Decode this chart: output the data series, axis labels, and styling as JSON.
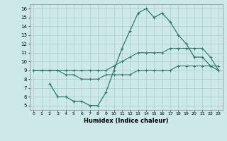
{
  "xlabel": "Humidex (Indice chaleur)",
  "xlim": [
    -0.5,
    23.5
  ],
  "ylim": [
    4.5,
    16.5
  ],
  "xticks": [
    0,
    1,
    2,
    3,
    4,
    5,
    6,
    7,
    8,
    9,
    10,
    11,
    12,
    13,
    14,
    15,
    16,
    17,
    18,
    19,
    20,
    21,
    22,
    23
  ],
  "yticks": [
    5,
    6,
    7,
    8,
    9,
    10,
    11,
    12,
    13,
    14,
    15,
    16
  ],
  "line_color": "#2d7a70",
  "bg_color": "#cce8e8",
  "grid_color": "#aacccc",
  "line1_x": [
    0,
    1,
    2,
    3,
    4,
    5,
    6,
    7,
    8,
    9,
    10,
    11,
    12,
    13,
    14,
    15,
    16,
    17,
    18,
    19,
    20,
    21,
    22,
    23
  ],
  "line1_y": [
    9,
    9,
    9,
    9,
    8.5,
    8.5,
    8,
    8,
    8,
    8.5,
    8.5,
    8.5,
    8.5,
    9,
    9,
    9,
    9,
    9,
    9.5,
    9.5,
    9.5,
    9.5,
    9.5,
    9.5
  ],
  "line2_x": [
    0,
    1,
    2,
    3,
    4,
    5,
    6,
    7,
    8,
    9,
    10,
    11,
    12,
    13,
    14,
    15,
    16,
    17,
    18,
    19,
    20,
    21,
    22,
    23
  ],
  "line2_y": [
    9,
    9,
    9,
    9,
    9,
    9,
    9,
    9,
    9,
    9,
    9.5,
    10,
    10.5,
    11,
    11,
    11,
    11,
    11.5,
    11.5,
    11.5,
    11.5,
    11.5,
    10.5,
    9
  ],
  "line3_x": [
    2,
    3,
    4,
    5,
    6,
    7,
    8,
    9,
    10,
    11,
    12,
    13,
    14,
    15,
    16,
    17,
    18,
    19,
    20,
    21,
    22,
    23
  ],
  "line3_y": [
    7.5,
    6,
    6,
    5.5,
    5.5,
    5,
    5,
    6.5,
    9,
    11.5,
    13.5,
    15.5,
    16,
    15,
    15.5,
    14.5,
    13,
    12,
    10.5,
    10.5,
    9.5,
    9
  ]
}
